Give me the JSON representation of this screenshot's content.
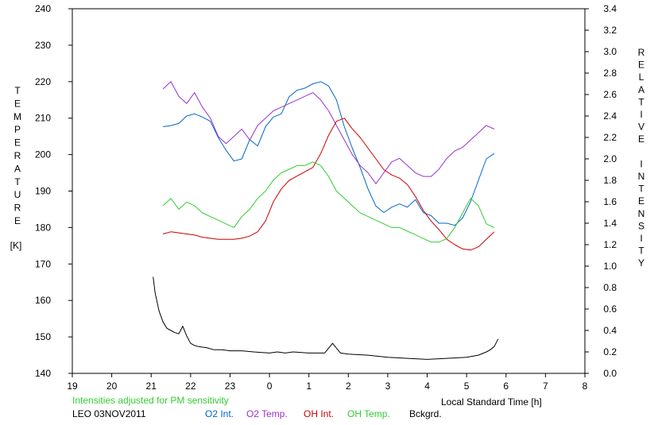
{
  "chart_data": {
    "type": "line",
    "title": "",
    "station_date_label": "LEO 03NOV2011",
    "note": "Intensities adjusted for PM sensitivity",
    "xlabel": "Local Standard Time [h]",
    "ylabel_left_letters": [
      "T",
      "E",
      "M",
      "P",
      "E",
      "R",
      "A",
      "T",
      "U",
      "R",
      "E"
    ],
    "ylabel_left_unit": "[K]",
    "ylabel_right_letters": [
      "R",
      "E",
      "L",
      "A",
      "T",
      "I",
      "V",
      "E",
      "",
      "I",
      "N",
      "T",
      "E",
      "N",
      "S",
      "I",
      "T",
      "Y"
    ],
    "x_ticks": [
      "19",
      "20",
      "21",
      "22",
      "23",
      "0",
      "1",
      "2",
      "3",
      "4",
      "5",
      "6",
      "7",
      "8"
    ],
    "left_ticks": [
      "140",
      "150",
      "160",
      "170",
      "180",
      "190",
      "200",
      "210",
      "220",
      "230",
      "240"
    ],
    "right_ticks": [
      "0.0",
      "0.2",
      "0.4",
      "0.6",
      "0.8",
      "1.0",
      "1.2",
      "1.4",
      "1.6",
      "1.8",
      "2.0",
      "2.2",
      "2.4",
      "2.6",
      "2.8",
      "3.0",
      "3.2",
      "3.4"
    ],
    "xlim": [
      19,
      32
    ],
    "ylim_left": [
      140,
      240
    ],
    "ylim_right": [
      0,
      3.4
    ],
    "grid": false,
    "colors": {
      "o2_int": "#0066cc",
      "o2_temp": "#9933cc",
      "oh_int": "#cc0000",
      "oh_temp": "#33cc33",
      "bckgrd": "#000000",
      "note": "#33cc33"
    },
    "series": [
      {
        "name": "O2 Int.",
        "axis": "right",
        "color": "#0066cc",
        "x": [
          21.3,
          21.5,
          21.7,
          21.9,
          22.1,
          22.3,
          22.5,
          22.7,
          22.9,
          23.1,
          23.3,
          23.5,
          23.7,
          23.9,
          24.1,
          24.3,
          24.5,
          24.7,
          24.9,
          25.1,
          25.3,
          25.5,
          25.7,
          25.9,
          26.1,
          26.3,
          26.5,
          26.7,
          26.9,
          27.1,
          27.3,
          27.5,
          27.7,
          27.9,
          28.1,
          28.3,
          28.5,
          28.7,
          28.9,
          29.1,
          29.3,
          29.5,
          29.7
        ],
        "y": [
          2.3,
          2.31,
          2.33,
          2.4,
          2.42,
          2.39,
          2.35,
          2.2,
          2.08,
          1.98,
          2.0,
          2.18,
          2.12,
          2.3,
          2.39,
          2.42,
          2.58,
          2.64,
          2.66,
          2.7,
          2.72,
          2.68,
          2.55,
          2.3,
          2.1,
          1.92,
          1.72,
          1.56,
          1.5,
          1.55,
          1.58,
          1.55,
          1.62,
          1.5,
          1.47,
          1.4,
          1.4,
          1.38,
          1.45,
          1.6,
          1.8,
          2.0,
          2.05
        ]
      },
      {
        "name": "O2 Temp.",
        "axis": "left",
        "color": "#9933cc",
        "x": [
          21.3,
          21.5,
          21.7,
          21.9,
          22.1,
          22.3,
          22.5,
          22.7,
          22.9,
          23.1,
          23.3,
          23.5,
          23.7,
          23.9,
          24.1,
          24.3,
          24.5,
          24.7,
          24.9,
          25.1,
          25.3,
          25.5,
          25.7,
          25.9,
          26.1,
          26.3,
          26.5,
          26.7,
          26.9,
          27.1,
          27.3,
          27.5,
          27.7,
          27.9,
          28.1,
          28.3,
          28.5,
          28.7,
          28.9,
          29.1,
          29.3,
          29.5,
          29.7
        ],
        "y": [
          218,
          220,
          216,
          214,
          217,
          213,
          210,
          205,
          203,
          205,
          207,
          204,
          208,
          210,
          212,
          213,
          214,
          215,
          216,
          217,
          215,
          212,
          208,
          204,
          200,
          197,
          195,
          192,
          195,
          198,
          199,
          197,
          195,
          194,
          194,
          196,
          199,
          201,
          202,
          204,
          206,
          208,
          207
        ]
      },
      {
        "name": "OH Int.",
        "axis": "right",
        "color": "#cc0000",
        "x": [
          21.3,
          21.5,
          21.7,
          21.9,
          22.1,
          22.3,
          22.5,
          22.7,
          22.9,
          23.1,
          23.3,
          23.5,
          23.7,
          23.9,
          24.1,
          24.3,
          24.5,
          24.7,
          24.9,
          25.1,
          25.3,
          25.5,
          25.7,
          25.9,
          26.1,
          26.3,
          26.5,
          26.7,
          26.9,
          27.1,
          27.3,
          27.5,
          27.7,
          27.9,
          28.1,
          28.3,
          28.5,
          28.7,
          28.9,
          29.1,
          29.3,
          29.5,
          29.7
        ],
        "y": [
          1.3,
          1.32,
          1.31,
          1.3,
          1.29,
          1.27,
          1.26,
          1.25,
          1.25,
          1.25,
          1.26,
          1.28,
          1.32,
          1.42,
          1.6,
          1.72,
          1.8,
          1.84,
          1.88,
          1.92,
          2.05,
          2.22,
          2.35,
          2.38,
          2.28,
          2.2,
          2.1,
          2.0,
          1.9,
          1.85,
          1.82,
          1.76,
          1.65,
          1.52,
          1.42,
          1.34,
          1.25,
          1.2,
          1.16,
          1.15,
          1.18,
          1.25,
          1.32
        ]
      },
      {
        "name": "OH Temp.",
        "axis": "left",
        "color": "#33cc33",
        "x": [
          21.3,
          21.5,
          21.7,
          21.9,
          22.1,
          22.3,
          22.5,
          22.7,
          22.9,
          23.1,
          23.3,
          23.5,
          23.7,
          23.9,
          24.1,
          24.3,
          24.5,
          24.7,
          24.9,
          25.1,
          25.3,
          25.5,
          25.7,
          25.9,
          26.1,
          26.3,
          26.5,
          26.7,
          26.9,
          27.1,
          27.3,
          27.5,
          27.7,
          27.9,
          28.1,
          28.3,
          28.5,
          28.7,
          28.9,
          29.1,
          29.3,
          29.5,
          29.7
        ],
        "y": [
          186,
          188,
          185,
          187,
          186,
          184,
          183,
          182,
          181,
          180,
          183,
          185,
          188,
          190,
          193,
          195,
          196,
          197,
          197,
          198,
          197,
          194,
          190,
          188,
          186,
          184,
          183,
          182,
          181,
          180,
          180,
          179,
          178,
          177,
          176,
          176,
          177,
          180,
          184,
          188,
          186,
          181,
          180
        ]
      },
      {
        "name": "Bckgrd.",
        "axis": "right",
        "color": "#000000",
        "x": [
          21.05,
          21.1,
          21.2,
          21.3,
          21.4,
          21.5,
          21.6,
          21.7,
          21.8,
          21.9,
          22.0,
          22.1,
          22.2,
          22.4,
          22.6,
          22.8,
          23.0,
          23.3,
          23.6,
          24.0,
          24.2,
          24.4,
          24.6,
          25.0,
          25.4,
          25.6,
          25.8,
          26.0,
          26.5,
          27.0,
          27.5,
          28.0,
          28.5,
          29.0,
          29.3,
          29.5,
          29.6,
          29.7,
          29.8
        ],
        "y": [
          0.9,
          0.75,
          0.58,
          0.48,
          0.42,
          0.4,
          0.38,
          0.37,
          0.44,
          0.35,
          0.28,
          0.26,
          0.25,
          0.24,
          0.22,
          0.22,
          0.21,
          0.21,
          0.2,
          0.19,
          0.2,
          0.19,
          0.2,
          0.19,
          0.19,
          0.28,
          0.19,
          0.18,
          0.17,
          0.15,
          0.14,
          0.13,
          0.14,
          0.15,
          0.17,
          0.2,
          0.22,
          0.25,
          0.32
        ]
      }
    ]
  }
}
